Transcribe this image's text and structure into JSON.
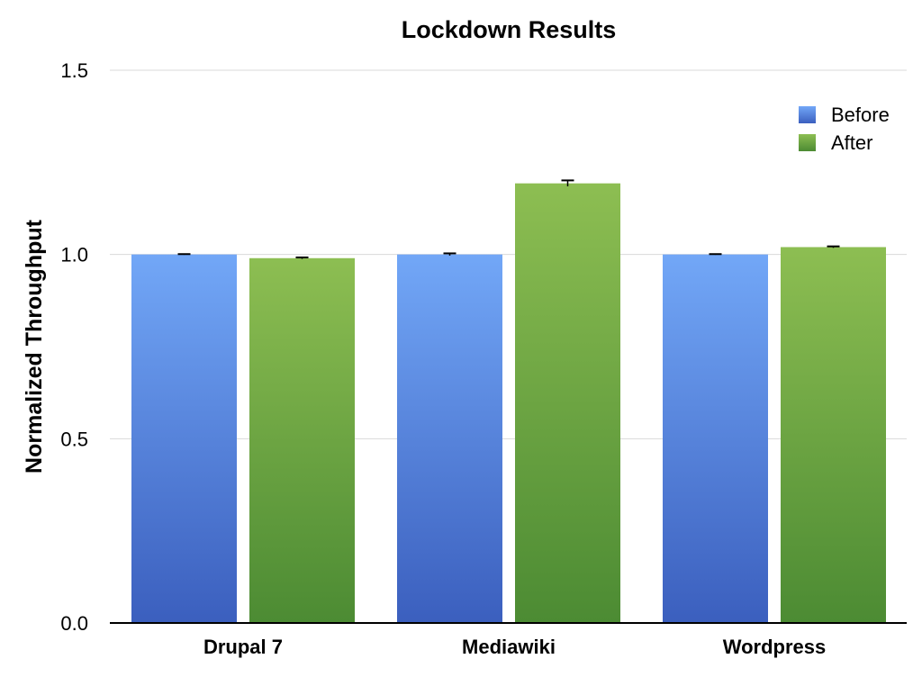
{
  "chart_data": {
    "type": "bar",
    "title": "Lockdown Results",
    "xlabel": "",
    "ylabel": "Normalized Throughput",
    "ylim": [
      0,
      1.5
    ],
    "yticks": [
      "0.0",
      "0.5",
      "1.0",
      "1.5"
    ],
    "categories": [
      "Drupal 7",
      "Mediawiki",
      "Wordpress"
    ],
    "series": [
      {
        "name": "Before",
        "values": [
          1.0,
          1.0,
          1.0
        ],
        "errors": [
          0.001,
          0.003,
          0.001
        ],
        "color_top": "#72a7f7",
        "color_bottom": "#3b5fbe"
      },
      {
        "name": "After",
        "values": [
          0.99,
          1.193,
          1.02
        ],
        "errors": [
          0.002,
          0.008,
          0.002
        ],
        "color_top": "#8dbe52",
        "color_bottom": "#4c8b33"
      }
    ],
    "grid": true,
    "legend": "top-right"
  }
}
